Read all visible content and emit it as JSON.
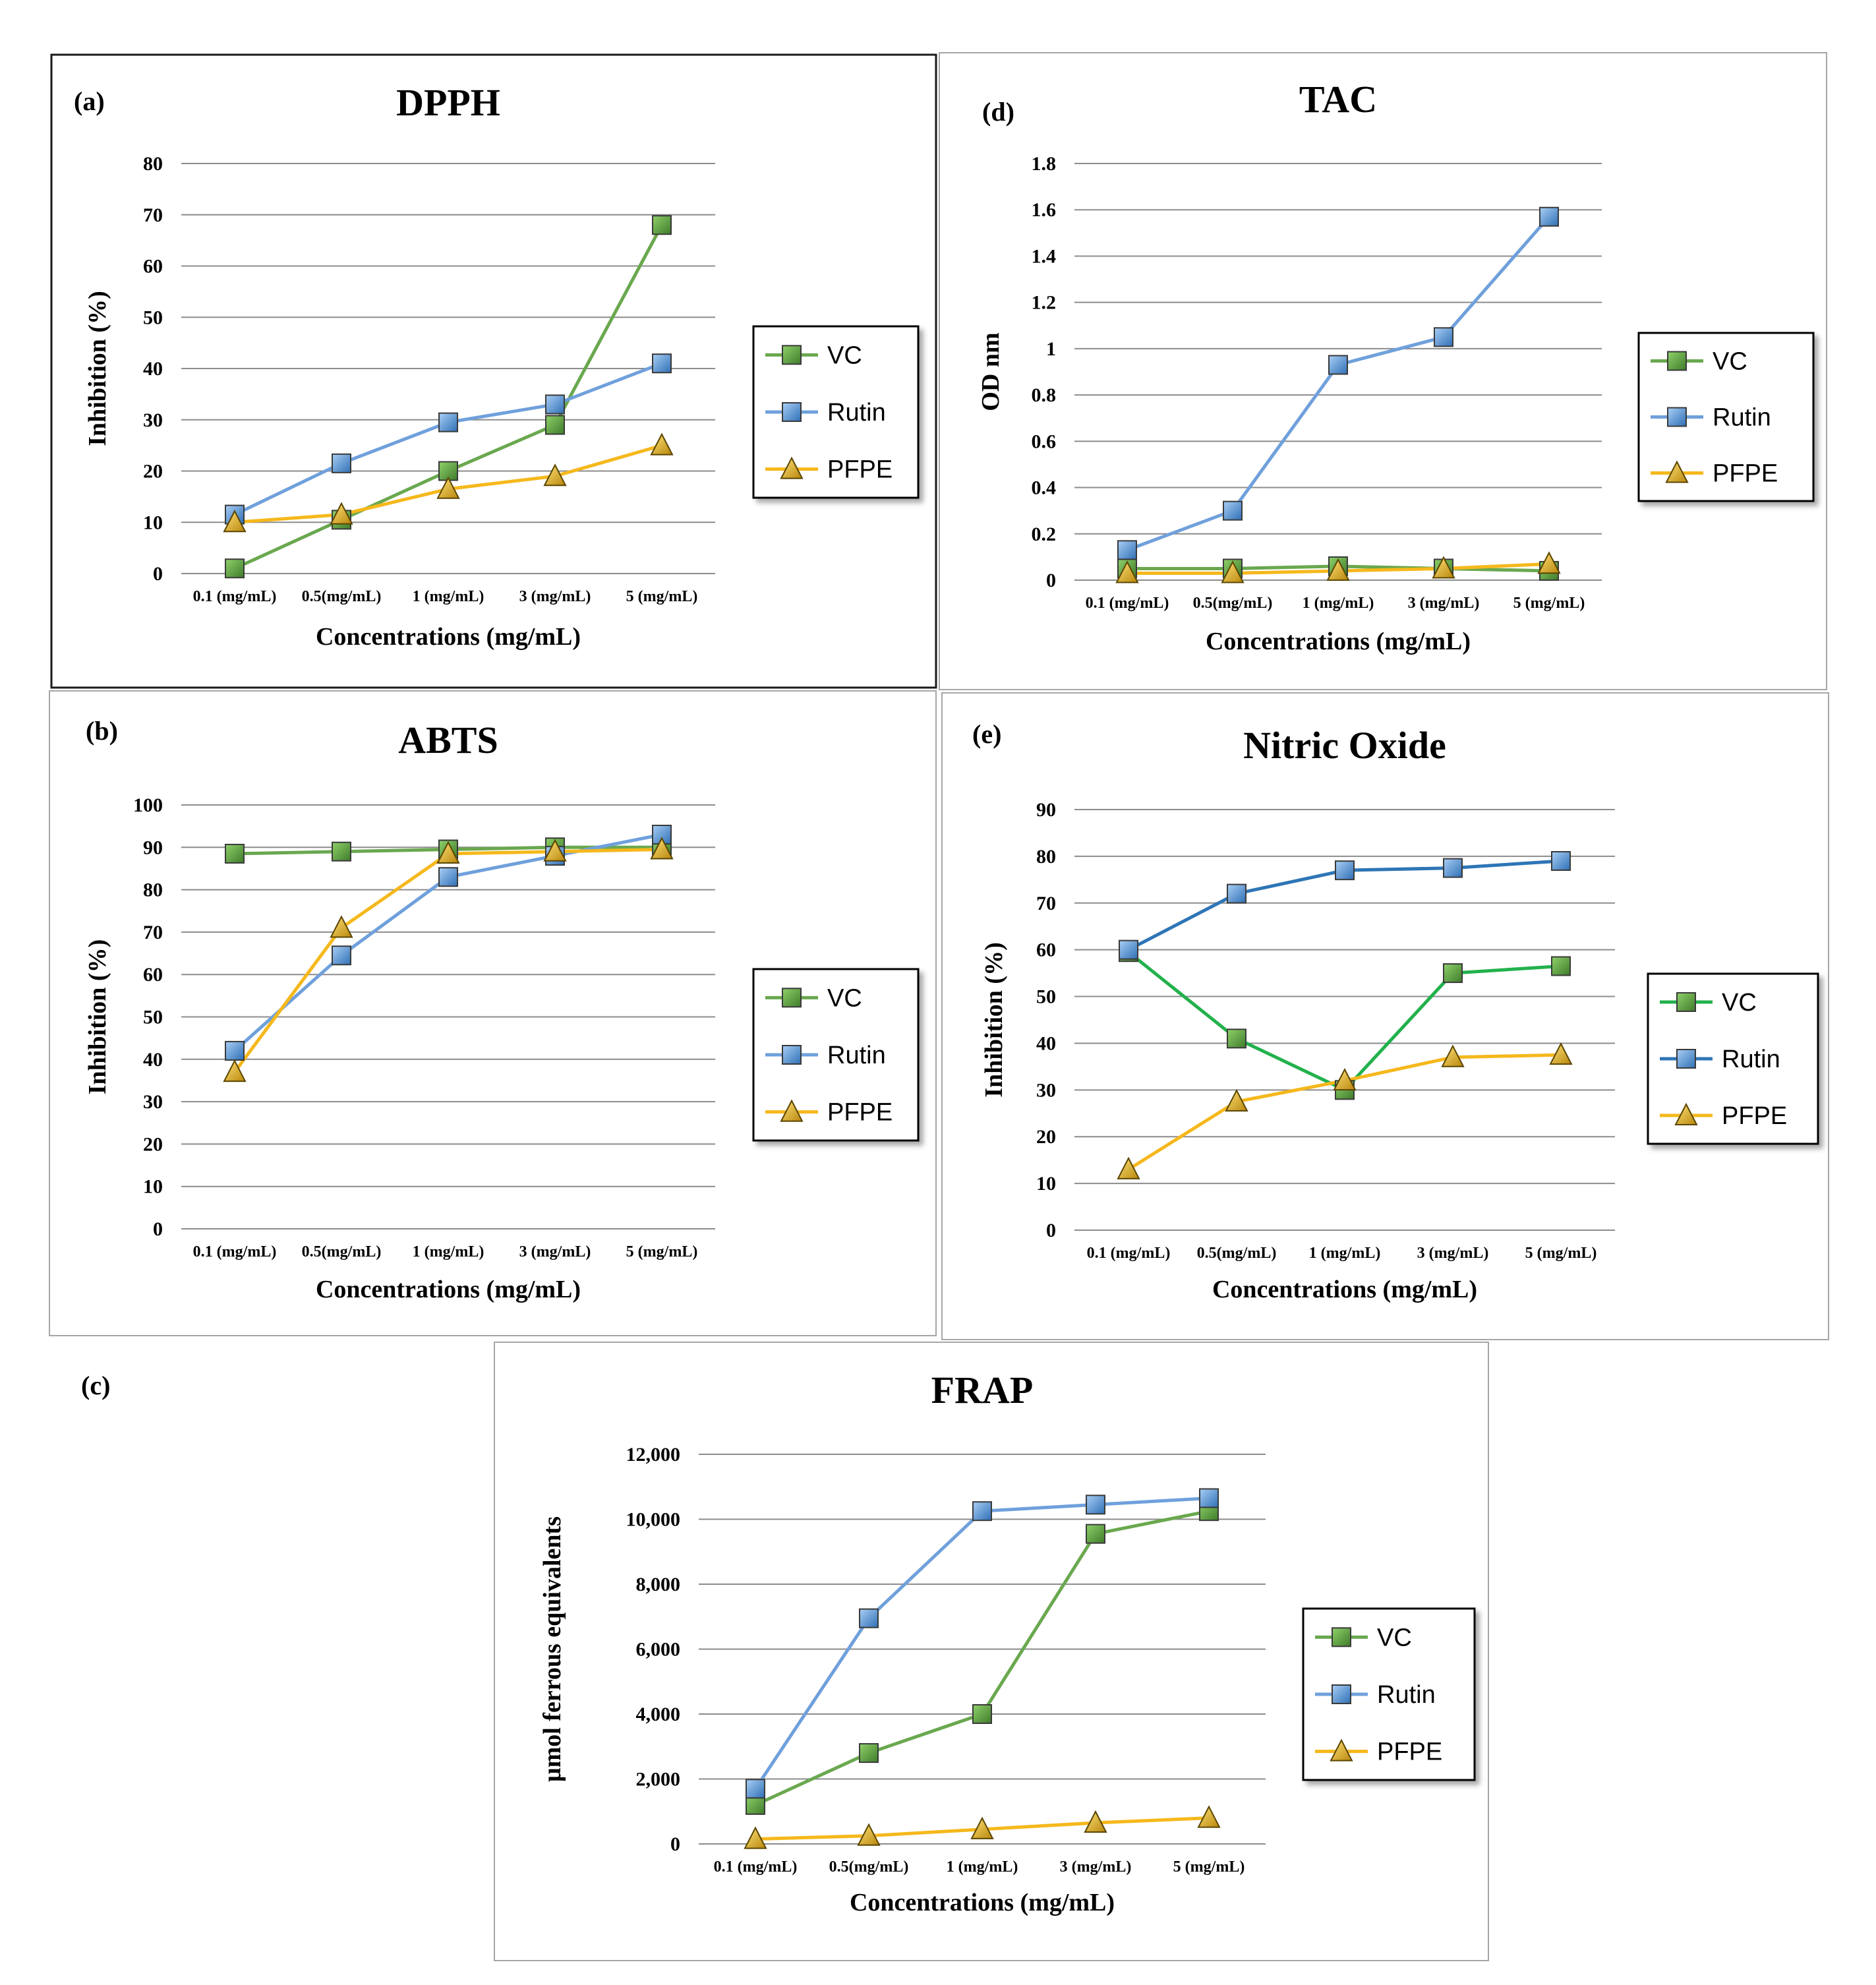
{
  "colors": {
    "vc": "#6aa84f",
    "vc_nitric": "#22b14c",
    "rutin": "#6fa0dc",
    "rutin_nitric": "#2e75b6",
    "pfpe": "#f5b81c",
    "grid": "#8c8c8c",
    "frame": "#9a9a9a"
  },
  "chart_data": [
    {
      "panel": "(a)",
      "type": "line",
      "title": "DPPH",
      "xlabel": "Concentrations (mg/mL)",
      "ylabel": "Inhibition (%)",
      "categories": [
        "0.1 (mg/mL)",
        "0.5(mg/mL)",
        "1 (mg/mL)",
        "3 (mg/mL)",
        "5 (mg/mL)"
      ],
      "ylim": [
        0,
        80
      ],
      "yticks": [
        0,
        10,
        20,
        30,
        40,
        50,
        60,
        70,
        80
      ],
      "ytick_labels": [
        "0",
        "10",
        "20",
        "30",
        "40",
        "50",
        "60",
        "70",
        "80"
      ],
      "legend": "right",
      "series": [
        {
          "name": "VC",
          "values": [
            1,
            10.5,
            20,
            29,
            68
          ]
        },
        {
          "name": "Rutin",
          "values": [
            11.5,
            21.5,
            29.5,
            33,
            41
          ]
        },
        {
          "name": "PFPE",
          "values": [
            10,
            11.5,
            16.5,
            19,
            25
          ]
        }
      ]
    },
    {
      "panel": "(b)",
      "type": "line",
      "title": "ABTS",
      "xlabel": "Concentrations (mg/mL)",
      "ylabel": "Inhibition (%)",
      "categories": [
        "0.1 (mg/mL)",
        "0.5(mg/mL)",
        "1 (mg/mL)",
        "3 (mg/mL)",
        "5 (mg/mL)"
      ],
      "ylim": [
        0,
        100
      ],
      "yticks": [
        0,
        10,
        20,
        30,
        40,
        50,
        60,
        70,
        80,
        90,
        100
      ],
      "ytick_labels": [
        "0",
        "10",
        "20",
        "30",
        "40",
        "50",
        "60",
        "70",
        "80",
        "90",
        "100"
      ],
      "legend": "right",
      "series": [
        {
          "name": "VC",
          "values": [
            88.5,
            89,
            89.5,
            90,
            90
          ]
        },
        {
          "name": "Rutin",
          "values": [
            42,
            64.5,
            83,
            88,
            93
          ]
        },
        {
          "name": "PFPE",
          "values": [
            37,
            71,
            88.5,
            89,
            89.5
          ]
        }
      ]
    },
    {
      "panel": "(c)",
      "type": "line",
      "title": "FRAP",
      "xlabel": "Concentrations (mg/mL)",
      "ylabel": "μmol ferrous equivalents",
      "categories": [
        "0.1 (mg/mL)",
        "0.5(mg/mL)",
        "1 (mg/mL)",
        "3 (mg/mL)",
        "5 (mg/mL)"
      ],
      "ylim": [
        0,
        12000
      ],
      "yticks": [
        0,
        2000,
        4000,
        6000,
        8000,
        10000,
        12000
      ],
      "ytick_labels": [
        "0",
        "2,000",
        "4,000",
        "6,000",
        "8,000",
        "10,000",
        "12,000"
      ],
      "legend": "right",
      "series": [
        {
          "name": "VC",
          "values": [
            1200,
            2800,
            4000,
            9550,
            10250
          ]
        },
        {
          "name": "Rutin",
          "values": [
            1700,
            6950,
            10250,
            10450,
            10650
          ]
        },
        {
          "name": "PFPE",
          "values": [
            150,
            250,
            450,
            650,
            800
          ]
        }
      ]
    },
    {
      "panel": "(d)",
      "type": "line",
      "title": "TAC",
      "xlabel": "Concentrations (mg/mL)",
      "ylabel": "OD nm",
      "categories": [
        "0.1 (mg/mL)",
        "0.5(mg/mL)",
        "1 (mg/mL)",
        "3 (mg/mL)",
        "5 (mg/mL)"
      ],
      "ylim": [
        0,
        1.8
      ],
      "yticks": [
        0,
        0.2,
        0.4,
        0.6,
        0.8,
        1,
        1.2,
        1.4,
        1.6,
        1.8
      ],
      "ytick_labels": [
        "0",
        "0.2",
        "0.4",
        "0.6",
        "0.8",
        "1",
        "1.2",
        "1.4",
        "1.6",
        "1.8"
      ],
      "legend": "right",
      "series": [
        {
          "name": "VC",
          "values": [
            0.05,
            0.05,
            0.06,
            0.05,
            0.04
          ]
        },
        {
          "name": "Rutin",
          "values": [
            0.13,
            0.3,
            0.93,
            1.05,
            1.57
          ]
        },
        {
          "name": "PFPE",
          "values": [
            0.03,
            0.03,
            0.04,
            0.05,
            0.07
          ]
        }
      ]
    },
    {
      "panel": "(e)",
      "type": "line",
      "title": "Nitric Oxide",
      "xlabel": "Concentrations (mg/mL)",
      "ylabel": "Inhibition (%)",
      "categories": [
        "0.1 (mg/mL)",
        "0.5(mg/mL)",
        "1 (mg/mL)",
        "3 (mg/mL)",
        "5 (mg/mL)"
      ],
      "ylim": [
        0,
        90
      ],
      "yticks": [
        0,
        10,
        20,
        30,
        40,
        50,
        60,
        70,
        80,
        90
      ],
      "ytick_labels": [
        "0",
        "10",
        "20",
        "30",
        "40",
        "50",
        "60",
        "70",
        "80",
        "90"
      ],
      "legend": "right",
      "series": [
        {
          "name": "VC",
          "values": [
            59.5,
            41,
            30,
            55,
            56.5
          ]
        },
        {
          "name": "Rutin",
          "values": [
            60,
            72,
            77,
            77.5,
            79
          ]
        },
        {
          "name": "PFPE",
          "values": [
            13,
            27.5,
            32,
            37,
            37.5
          ]
        }
      ]
    }
  ]
}
